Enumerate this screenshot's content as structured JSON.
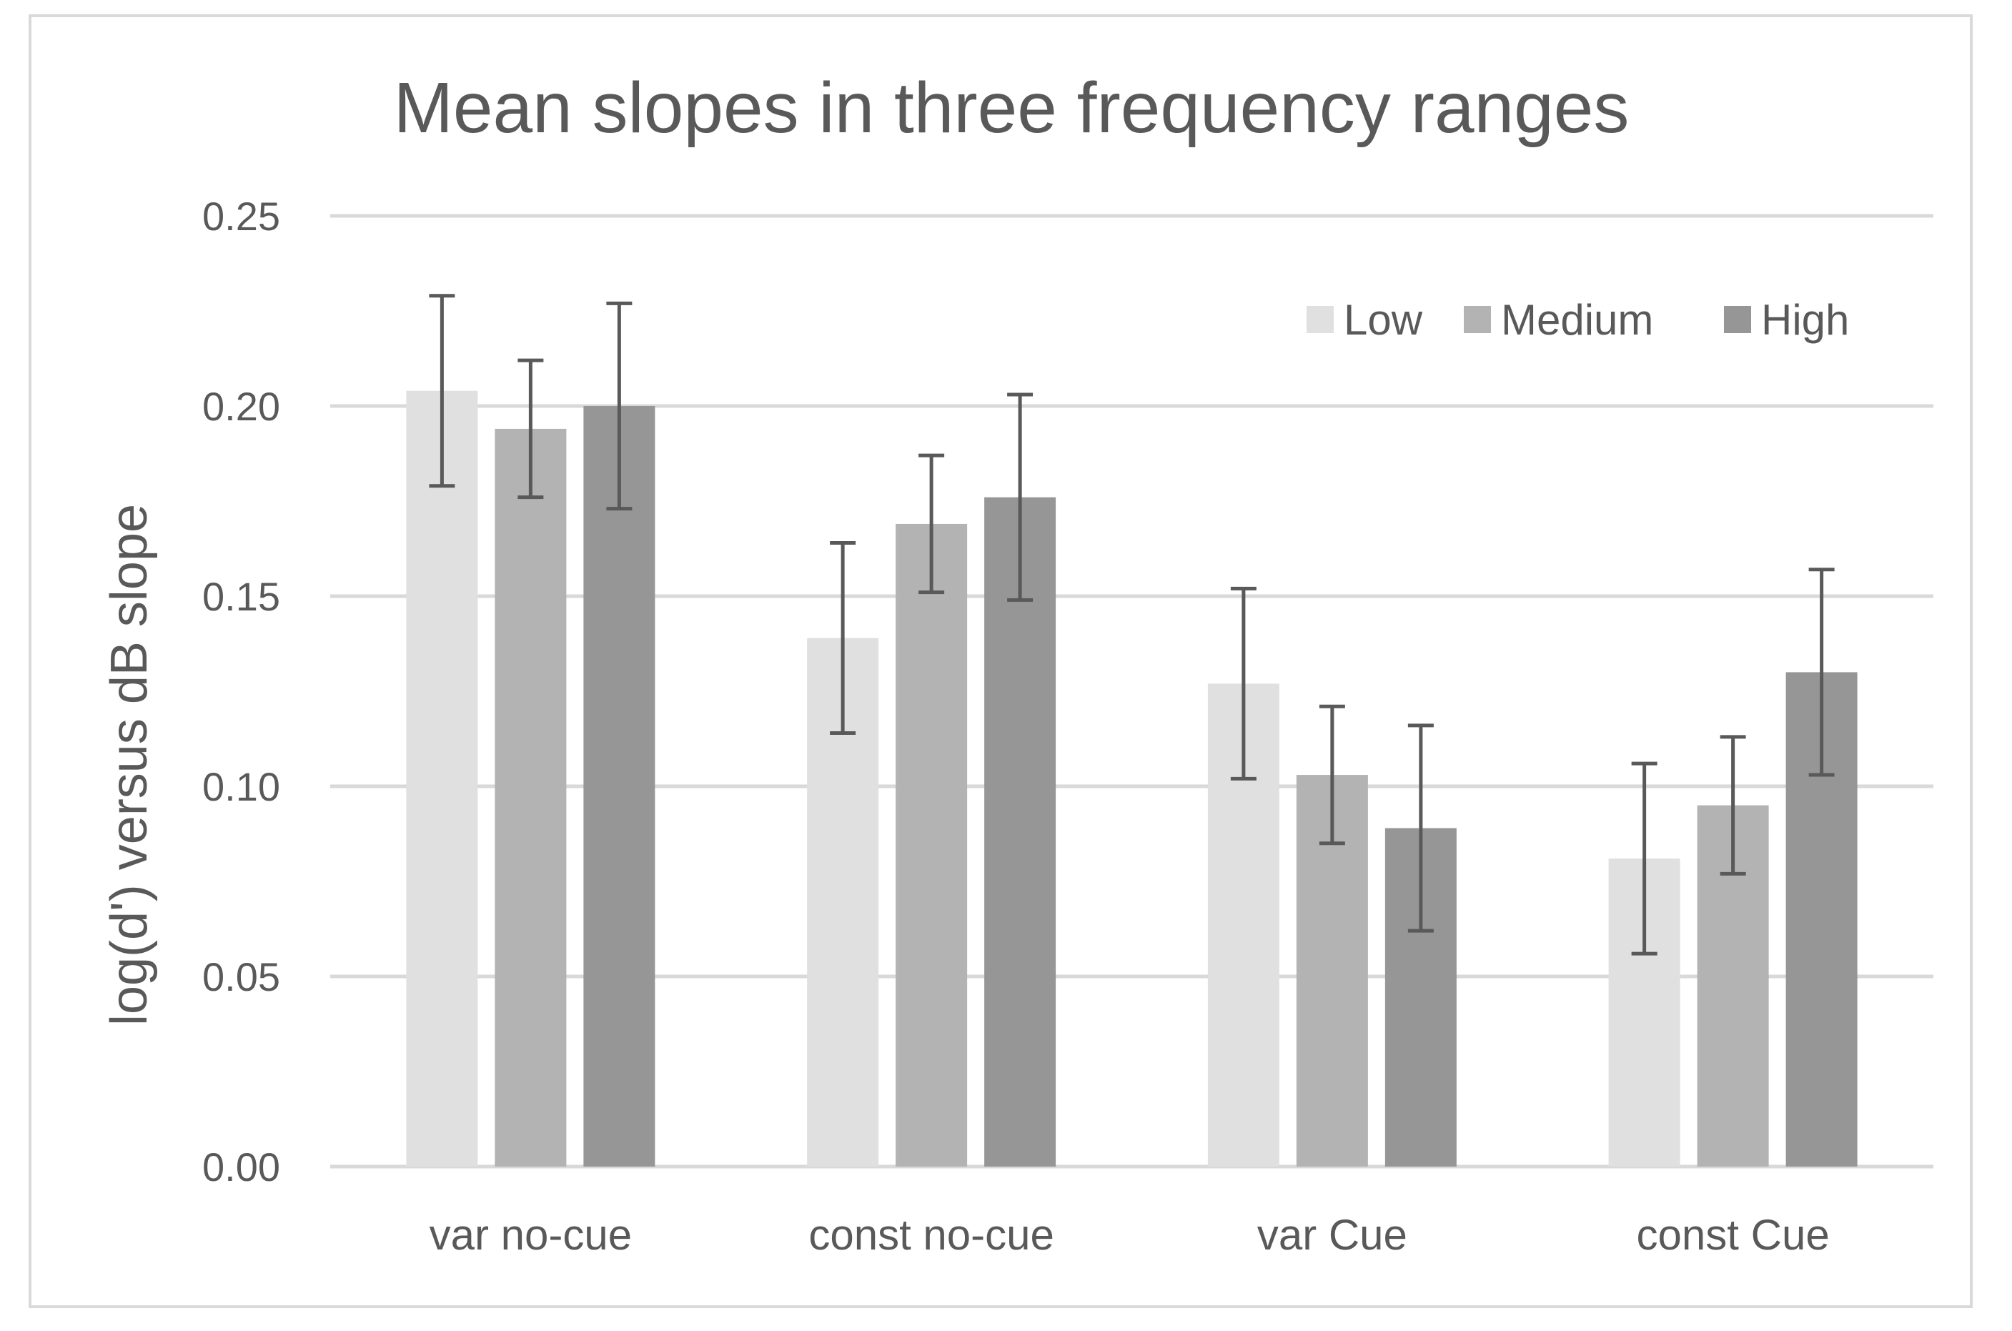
{
  "chart_data": {
    "type": "bar",
    "title": "Mean slopes in three frequency ranges",
    "xlabel": "",
    "ylabel": "log(d') versus dB slope",
    "ylim": [
      0,
      0.25
    ],
    "yticks": [
      "0.00",
      "0.05",
      "0.10",
      "0.15",
      "0.20",
      "0.25"
    ],
    "grid": true,
    "legend_position": "top-right",
    "categories": [
      "var no-cue",
      "const no-cue",
      "var Cue",
      "const Cue"
    ],
    "series": [
      {
        "name": "Low",
        "color": "#e0e0e0",
        "values": [
          0.204,
          0.139,
          0.127,
          0.081
        ],
        "error_low": [
          0.179,
          0.114,
          0.102,
          0.056
        ],
        "error_high": [
          0.229,
          0.164,
          0.152,
          0.106
        ]
      },
      {
        "name": "Medium",
        "color": "#b3b3b3",
        "values": [
          0.194,
          0.169,
          0.103,
          0.095
        ],
        "error_low": [
          0.176,
          0.151,
          0.085,
          0.077
        ],
        "error_high": [
          0.212,
          0.187,
          0.121,
          0.113
        ]
      },
      {
        "name": "High",
        "color": "#969696",
        "values": [
          0.2,
          0.176,
          0.089,
          0.13
        ],
        "error_low": [
          0.173,
          0.149,
          0.062,
          0.103
        ],
        "error_high": [
          0.227,
          0.203,
          0.116,
          0.157
        ]
      }
    ],
    "gridline_color": "#d9d9d9",
    "errorbar_color": "#595959"
  }
}
